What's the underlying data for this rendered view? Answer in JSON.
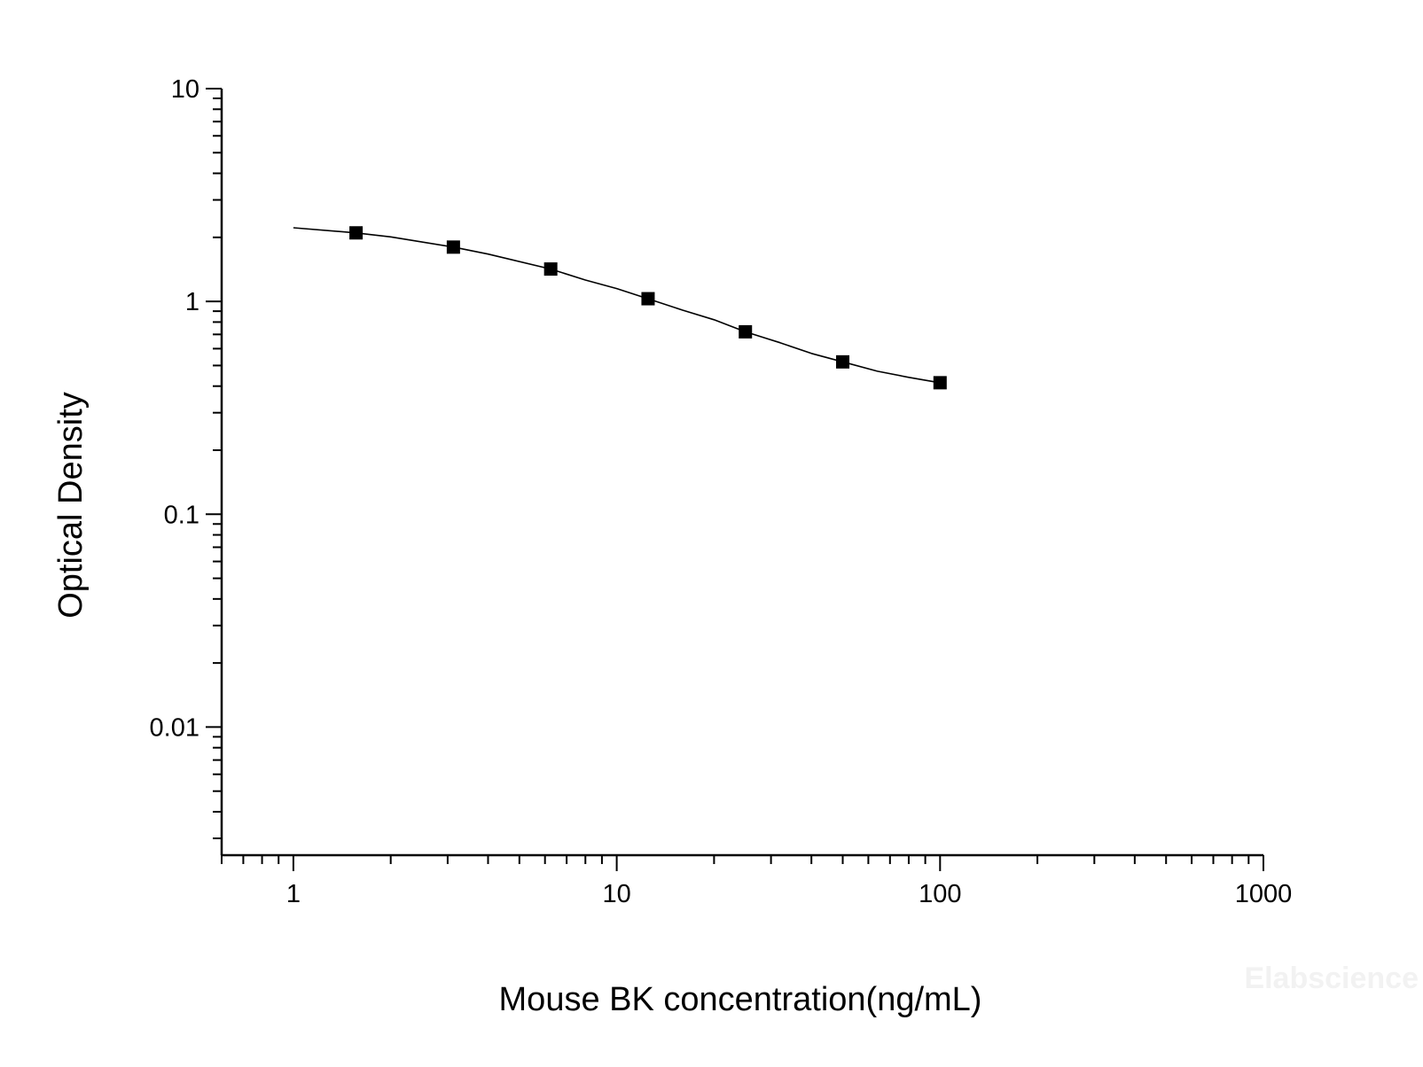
{
  "watermark": "Elabscience",
  "chart_data": {
    "type": "scatter",
    "title": "",
    "xlabel": "Mouse BK concentration(ng/mL)",
    "ylabel": "Optical Density",
    "xscale": "log",
    "yscale": "log",
    "xlim": [
      0.6,
      1000
    ],
    "ylim": [
      0.0025,
      10
    ],
    "x_ticks": [
      1,
      10,
      100,
      1000
    ],
    "x_tick_labels": [
      "1",
      "10",
      "100",
      "1000"
    ],
    "y_ticks": [
      0.01,
      0.1,
      1,
      10
    ],
    "y_tick_labels": [
      "0.01",
      "0.1",
      "1",
      "10"
    ],
    "grid": false,
    "legend": "none",
    "marker": "square",
    "color": "#000000",
    "series": [
      {
        "x": [
          1.5625,
          3.125,
          6.25,
          12.5,
          25,
          50,
          100
        ],
        "y": [
          2.1,
          1.8,
          1.42,
          1.03,
          0.72,
          0.52,
          0.415
        ]
      }
    ],
    "fit_curve": {
      "x": [
        1,
        1.5625,
        2,
        3.125,
        4,
        6.25,
        8,
        10,
        12.5,
        16,
        20,
        25,
        32,
        40,
        50,
        64,
        80,
        100
      ],
      "y": [
        2.22,
        2.1,
        2.01,
        1.8,
        1.67,
        1.42,
        1.26,
        1.15,
        1.03,
        0.91,
        0.82,
        0.72,
        0.64,
        0.57,
        0.52,
        0.47,
        0.44,
        0.415
      ]
    }
  }
}
